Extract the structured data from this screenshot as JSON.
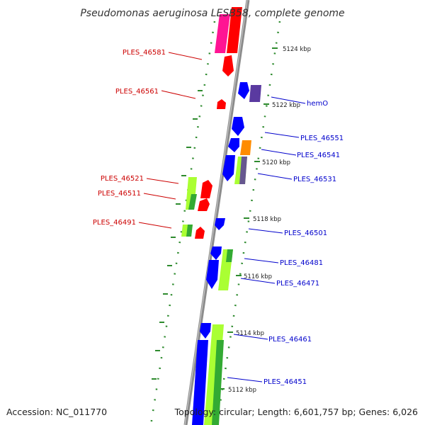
{
  "title": "Pseudomonas aeruginosa LESB58, complete genome",
  "footer": {
    "accession": "Accession: NC_011770",
    "summary": "Topology: circular; Length: 6,601,757 bp; Genes: 6,026"
  },
  "colors": {
    "backbone": "#8c8c8c",
    "tick": "#2e8b2e",
    "left_label": "#cc0000",
    "right_label": "#0000cc",
    "red": "#ff0000",
    "magenta": "#ff1493",
    "blue": "#0000ff",
    "lime": "#aaff33",
    "green": "#33aa33",
    "orange": "#ff8c00",
    "purple": "#5a3aa0"
  },
  "ticks": [
    "5124 kbp",
    "5122 kbp",
    "5120 kbp",
    "5118 kbp",
    "5116 kbp",
    "5114 kbp",
    "5112 kbp"
  ],
  "left_labels": [
    "PLES_46581",
    "PLES_46561",
    "PLES_46521",
    "PLES_46511",
    "PLES_46491"
  ],
  "right_labels": [
    "hemO",
    "PLES_46551",
    "PLES_46541",
    "PLES_46531",
    "PLES_46501",
    "PLES_46481",
    "PLES_46471",
    "PLES_46461",
    "PLES_46451"
  ]
}
